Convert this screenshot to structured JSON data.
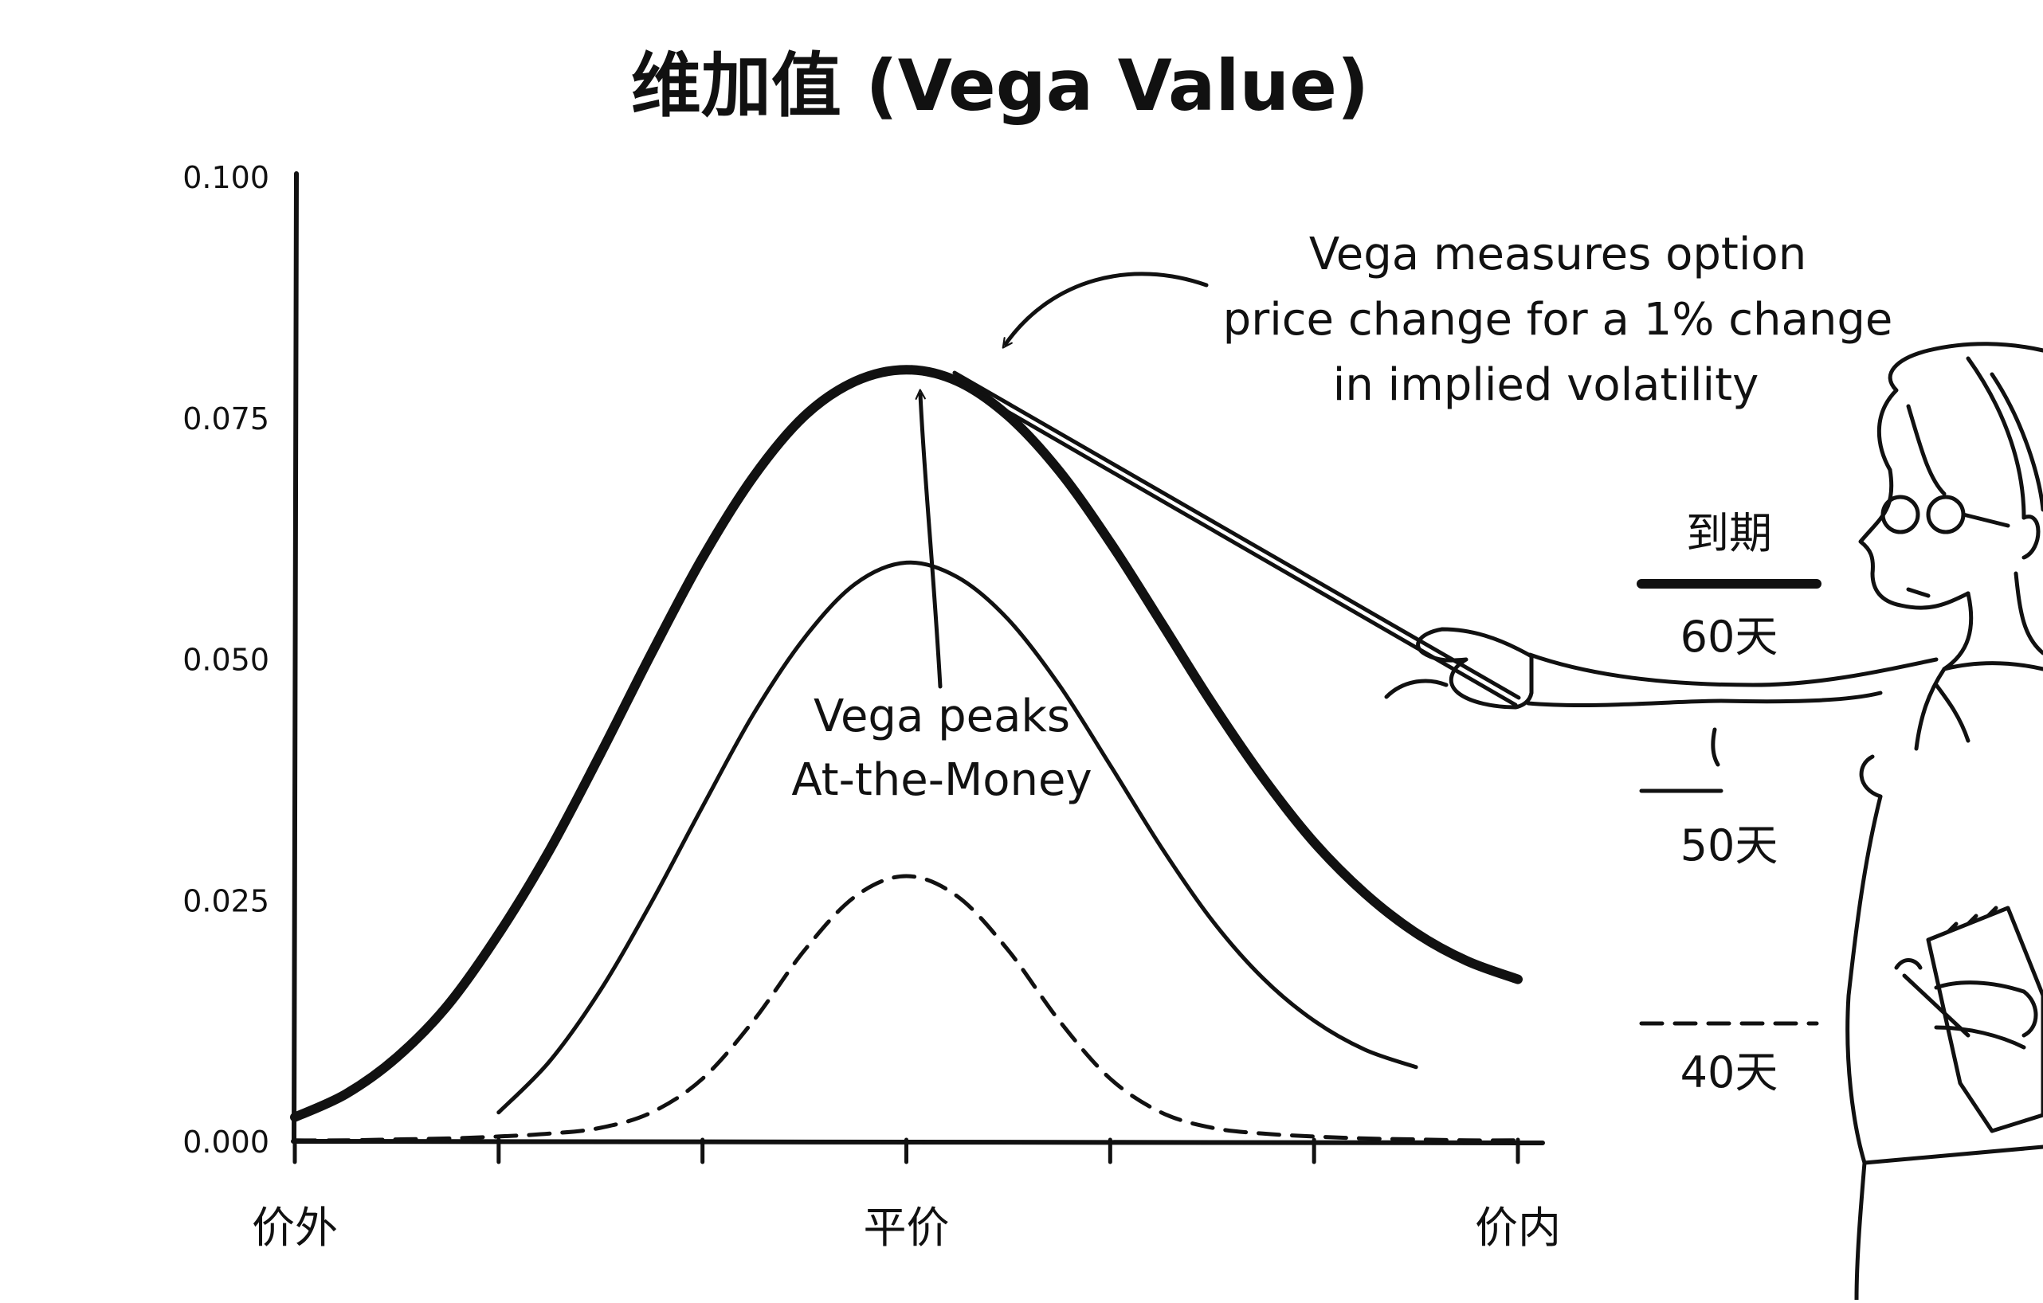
{
  "chart_data": {
    "type": "line",
    "title": "维加值 (Vega Value)",
    "xlabel": "",
    "ylabel": "",
    "ylim": [
      0,
      0.1
    ],
    "yticks": [
      "0.000",
      "0.025",
      "0.050",
      "0.075",
      "0.100"
    ],
    "x_tick_labels": [
      {
        "x": 0,
        "label": "价外"
      },
      {
        "x": 3,
        "label": "平价"
      },
      {
        "x": 6,
        "label": "价内"
      }
    ],
    "x": [
      0,
      0.25,
      0.5,
      0.75,
      1,
      1.25,
      1.5,
      1.75,
      2,
      2.25,
      2.5,
      2.75,
      3,
      3.25,
      3.5,
      3.75,
      4,
      4.25,
      4.5,
      4.75,
      5,
      5.25,
      5.5,
      5.75,
      6
    ],
    "series": [
      {
        "name": "60天",
        "style": "thick",
        "x_range": [
          0,
          6
        ],
        "values": [
          0.0025,
          0.0049,
          0.0087,
          0.0141,
          0.0215,
          0.0302,
          0.0402,
          0.0506,
          0.0605,
          0.0689,
          0.0752,
          0.0788,
          0.08,
          0.0788,
          0.0752,
          0.0695,
          0.0621,
          0.0538,
          0.0454,
          0.0377,
          0.031,
          0.0257,
          0.0216,
          0.0187,
          0.0168
        ]
      },
      {
        "name": "50天",
        "style": "thin",
        "x_range": [
          0.8,
          5.5
        ],
        "values": [
          null,
          null,
          null,
          null,
          0.003,
          0.0083,
          0.0157,
          0.0248,
          0.0347,
          0.0443,
          0.0522,
          0.0578,
          0.06,
          0.0585,
          0.0541,
          0.0473,
          0.039,
          0.0305,
          0.0229,
          0.0169,
          0.0125,
          0.0095,
          0.0077,
          null,
          null
        ]
      },
      {
        "name": "40天",
        "style": "dashed",
        "x_range": [
          0,
          6
        ],
        "values": [
          0.0001,
          0.0001,
          0.0002,
          0.0003,
          0.0005,
          0.0008,
          0.0014,
          0.003,
          0.0065,
          0.0125,
          0.0198,
          0.0254,
          0.0275,
          0.0254,
          0.0198,
          0.0125,
          0.0065,
          0.003,
          0.0014,
          0.0008,
          0.0005,
          0.0003,
          0.0002,
          0.0001,
          0.0001
        ]
      }
    ],
    "legend": {
      "title": "到期",
      "placement": "right",
      "entries": [
        "60天",
        "50天",
        "40天"
      ]
    },
    "annotations": [
      {
        "id": "definition",
        "lines": [
          "Vega measures option",
          "price change for a 1% change",
          "in implied volatility"
        ]
      },
      {
        "id": "peak",
        "lines": [
          "Vega peaks",
          "At-the-Money"
        ]
      }
    ]
  },
  "colors": {
    "ink": "#111111",
    "background": "#ffffff"
  },
  "illustration": {
    "figure": "presenter-with-pointer"
  }
}
